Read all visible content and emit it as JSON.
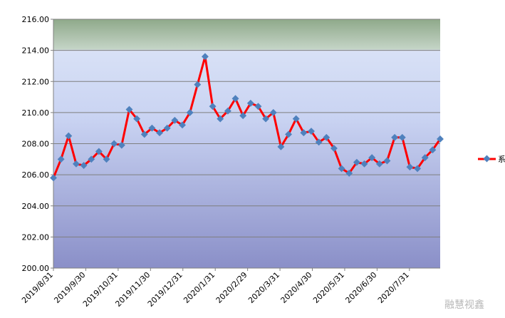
{
  "chart_data": {
    "type": "line",
    "title": "",
    "xlabel": "",
    "ylabel": "",
    "ylim": [
      200,
      216
    ],
    "y_ticks": [
      "200.00",
      "202.00",
      "204.00",
      "206.00",
      "208.00",
      "210.00",
      "212.00",
      "214.00",
      "216.00"
    ],
    "x_tick_labels": [
      "2019/8/31",
      "2019/9/30",
      "2019/10/31",
      "2019/11/30",
      "2019/12/31",
      "2020/1/31",
      "2020/2/29",
      "2020/3/31",
      "2020/4/30",
      "2020/5/31",
      "2020/6/30",
      "2020/7/31"
    ],
    "grid": true,
    "legend_position": "right",
    "series": [
      {
        "name": "",
        "color": "#ff0000",
        "marker_color": "#4f81bd",
        "values": [
          205.8,
          207.0,
          208.5,
          206.7,
          206.6,
          207.0,
          207.5,
          207.0,
          208.0,
          207.9,
          210.2,
          209.6,
          208.6,
          209.0,
          208.7,
          209.0,
          209.5,
          209.2,
          210.0,
          211.8,
          213.6,
          210.4,
          209.6,
          210.1,
          210.9,
          209.8,
          210.6,
          210.4,
          209.6,
          210.0,
          207.8,
          208.6,
          209.6,
          208.7,
          208.8,
          208.1,
          208.4,
          207.7,
          206.4,
          206.1,
          206.8,
          206.7,
          207.1,
          206.7,
          206.9,
          208.4,
          208.4,
          206.5,
          206.4,
          207.1,
          207.6,
          208.3
        ]
      }
    ]
  },
  "legend": {
    "label": "系"
  },
  "watermark": {
    "text": "融慧视鑫"
  }
}
